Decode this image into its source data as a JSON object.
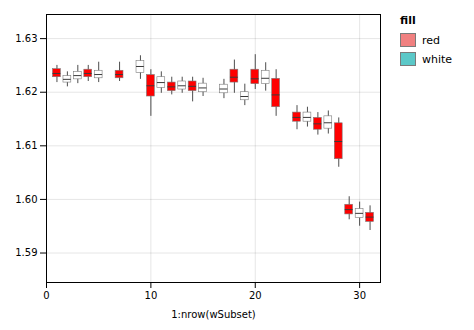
{
  "chart_data": {
    "type": "box",
    "xlabel": "1:nrow(wSubset)",
    "xlim": [
      0,
      32
    ],
    "ylim": [
      1.5845,
      1.6345
    ],
    "xticks": [
      0,
      10,
      20,
      30
    ],
    "yticks": [
      1.59,
      {
        "value": 1.6,
        "label": "1.60"
      },
      1.61,
      1.62,
      1.63
    ],
    "grid": true,
    "legend": "right",
    "legend_title": "fill",
    "series": [
      {
        "name": "red",
        "color": "#F08080"
      },
      {
        "name": "white",
        "color": "#5BC8C8"
      }
    ],
    "x": [
      1,
      2,
      3,
      4,
      5,
      7,
      9,
      10,
      11,
      12,
      13,
      14,
      15,
      17,
      18,
      19,
      20,
      21,
      22,
      24,
      25,
      26,
      27,
      28,
      29,
      30,
      31
    ],
    "low": [
      1.6218,
      1.621,
      1.6216,
      1.622,
      1.6218,
      1.622,
      1.6224,
      1.6155,
      1.6198,
      1.6195,
      1.6198,
      1.6182,
      1.6192,
      1.6188,
      1.6198,
      1.6175,
      1.6205,
      1.6202,
      1.6155,
      1.613,
      1.6135,
      1.612,
      1.6122,
      1.606,
      1.5962,
      1.595,
      1.5942
    ],
    "q1": [
      1.6228,
      1.6218,
      1.6224,
      1.6228,
      1.6226,
      1.6226,
      1.6236,
      1.6192,
      1.6208,
      1.6202,
      1.6205,
      1.6202,
      1.62,
      1.6198,
      1.6218,
      1.6185,
      1.6215,
      1.6215,
      1.6172,
      1.6145,
      1.6145,
      1.613,
      1.6132,
      1.6075,
      1.5972,
      1.5965,
      1.5958
    ],
    "median": [
      1.6235,
      1.6224,
      1.6231,
      1.6235,
      1.6233,
      1.6233,
      1.6248,
      1.6212,
      1.6218,
      1.621,
      1.6212,
      1.6211,
      1.6208,
      1.6206,
      1.6228,
      1.6192,
      1.6225,
      1.6226,
      1.6195,
      1.6153,
      1.6153,
      1.6141,
      1.6143,
      1.6108,
      1.5981,
      1.5974,
      1.5967
    ],
    "q3": [
      1.6243,
      1.623,
      1.6238,
      1.6242,
      1.624,
      1.624,
      1.6258,
      1.6232,
      1.6228,
      1.6218,
      1.622,
      1.622,
      1.6216,
      1.6214,
      1.6242,
      1.62,
      1.6242,
      1.624,
      1.6225,
      1.6162,
      1.6162,
      1.6152,
      1.6155,
      1.6142,
      1.599,
      1.5982,
      1.5975
    ],
    "high": [
      1.625,
      1.6238,
      1.625,
      1.625,
      1.6256,
      1.6256,
      1.6268,
      1.6242,
      1.6238,
      1.6228,
      1.6228,
      1.6228,
      1.6226,
      1.6224,
      1.626,
      1.6215,
      1.627,
      1.6255,
      1.6242,
      1.6175,
      1.6172,
      1.6162,
      1.6165,
      1.6152,
      1.6005,
      1.5995,
      1.5988
    ],
    "groups": [
      "red",
      "white",
      "white",
      "red",
      "white",
      "red",
      "white",
      "red",
      "white",
      "red",
      "white",
      "red",
      "white",
      "white",
      "red",
      "white",
      "red",
      "white",
      "red",
      "red",
      "white",
      "red",
      "white",
      "red",
      "red",
      "white",
      "red"
    ]
  }
}
